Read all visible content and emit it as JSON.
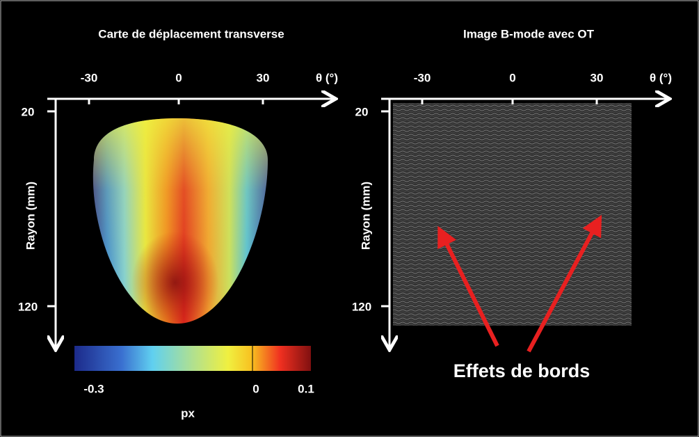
{
  "left_panel": {
    "title": "Carte de déplacement transverse",
    "x_axis": {
      "label": "θ (°)",
      "ticks": [
        "-30",
        "0",
        "30"
      ]
    },
    "y_axis": {
      "label": "Rayon (mm)",
      "ticks": [
        "20",
        "120"
      ]
    },
    "colorbar": {
      "label": "px",
      "ticks": [
        "-0.3",
        "0",
        "0.1"
      ]
    }
  },
  "right_panel": {
    "title": "Image B-mode avec OT",
    "x_axis": {
      "label": "θ (°)",
      "ticks": [
        "-30",
        "0",
        "30"
      ]
    },
    "y_axis": {
      "label": "Rayon (mm)",
      "ticks": [
        "20",
        "120"
      ]
    },
    "annotation": "Effets de bords"
  }
}
